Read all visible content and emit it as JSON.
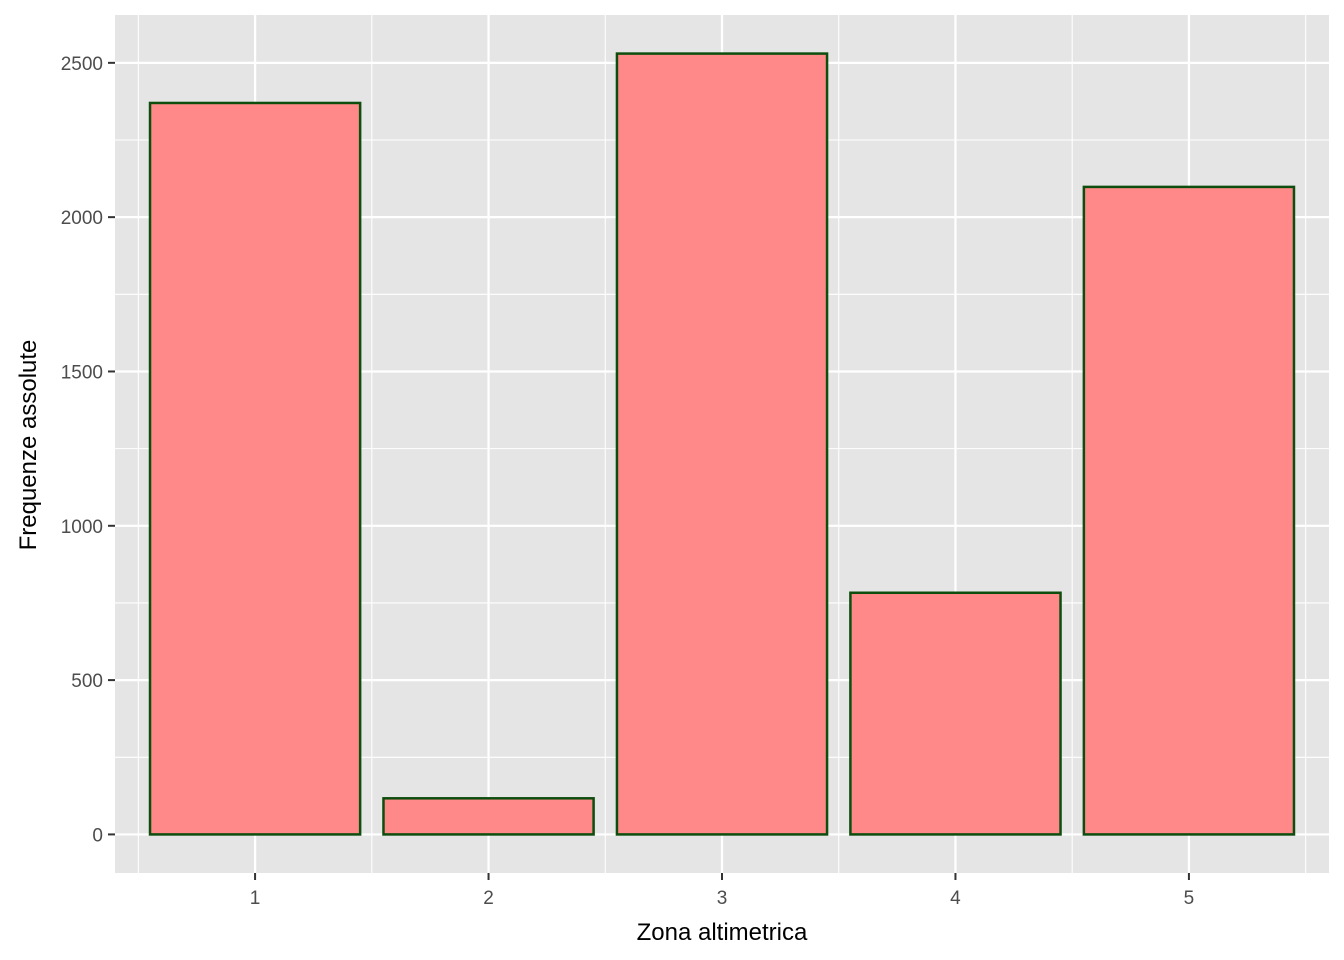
{
  "chart_data": {
    "type": "bar",
    "title": "",
    "xlabel": "Zona altimetrica",
    "ylabel": "Frequenze assolute",
    "categories": [
      "1",
      "2",
      "3",
      "4",
      "5"
    ],
    "values": [
      2370,
      117,
      2530,
      783,
      2098
    ],
    "ylim": [
      -125,
      2655
    ],
    "yticks": [
      0,
      500,
      1000,
      1500,
      2000,
      2500
    ],
    "ytick_labels": [
      "0",
      "500",
      "1000",
      "1500",
      "2000",
      "2500"
    ],
    "grid": true,
    "legend": "none",
    "colors": {
      "panel_bg": "#e5e5e5",
      "grid": "#ffffff",
      "bar_fill": "#ff8888",
      "bar_stroke": "#0d4d0d",
      "tick_text": "#4d4d4d",
      "title_text": "#000000"
    }
  }
}
